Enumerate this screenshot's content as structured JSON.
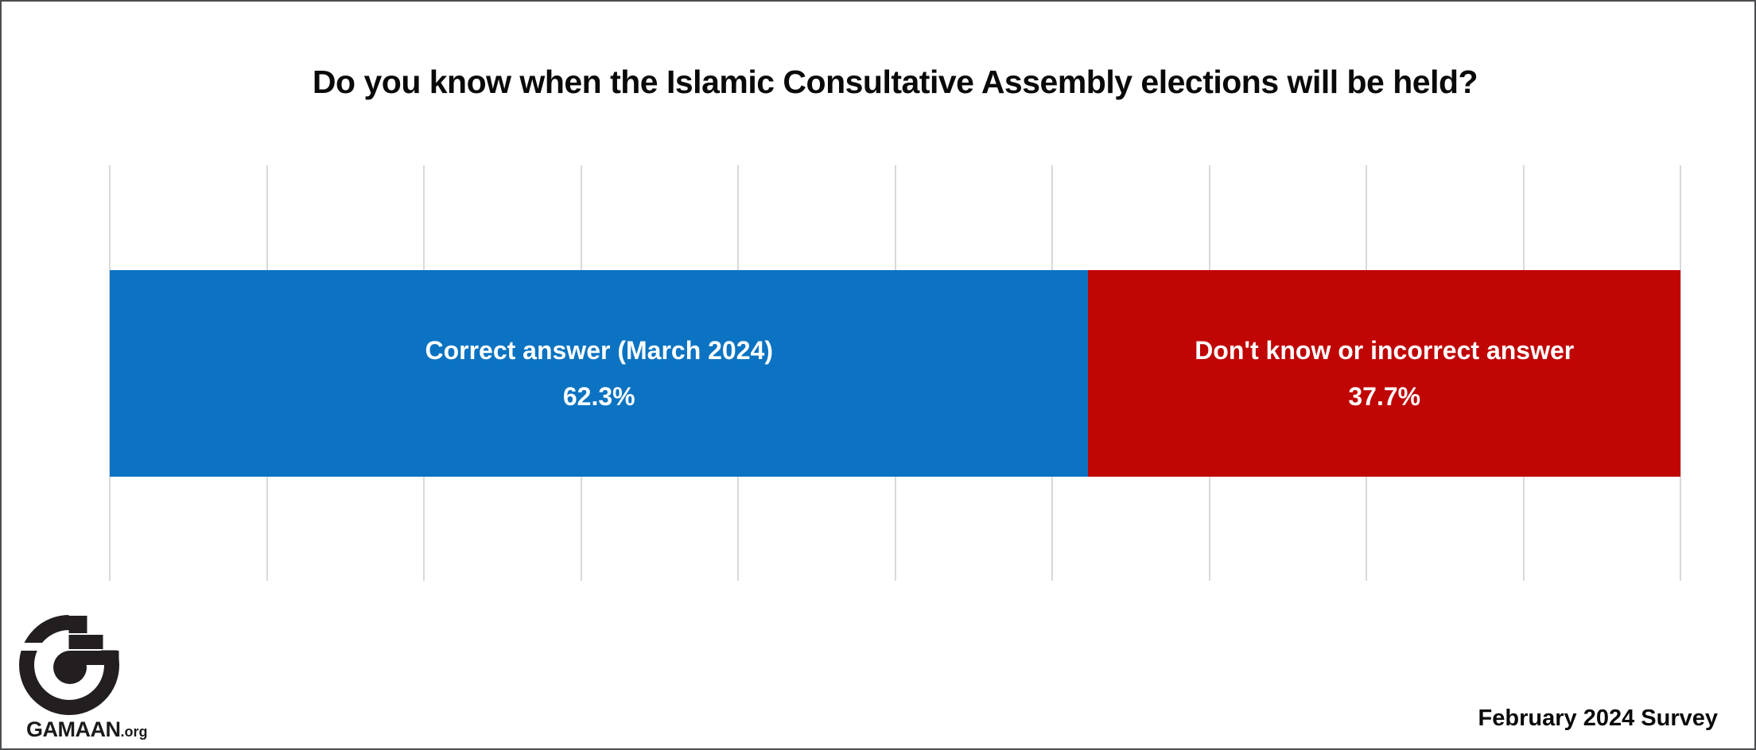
{
  "title": "Do you know when the Islamic Consultative Assembly elections will be held?",
  "footer": {
    "survey_note": "February 2024 Survey"
  },
  "logo": {
    "brand": "GAMAAN",
    "tld": ".org"
  },
  "colors": {
    "correct_blue": "#0b73c2",
    "incorrect_red": "#c00505",
    "gridline": "#d9d9d9",
    "frame_border": "#4c4d4f",
    "bar_label_text": "#ffffff",
    "title_text": "#0a0a0a",
    "logo_black": "#231f20"
  },
  "chart_data": {
    "type": "bar",
    "orientation": "horizontal-stacked",
    "title": "Do you know when the Islamic Consultative Assembly elections will be held?",
    "categories": [
      "Correct answer (March 2024)",
      "Don't know or incorrect answer"
    ],
    "series": [
      {
        "name": "Correct answer (March 2024)",
        "value": 62.3,
        "value_label": "62.3%",
        "color": "#0b73c2"
      },
      {
        "name": "Don't know or incorrect answer",
        "value": 37.7,
        "value_label": "37.7%",
        "color": "#c00505"
      }
    ],
    "xlabel": "",
    "ylabel": "",
    "xlim": [
      0,
      100
    ],
    "gridlines": {
      "count": 11,
      "step_percent": 10,
      "color": "#d9d9d9"
    },
    "legend": "none",
    "data_labels": "inside-center"
  }
}
